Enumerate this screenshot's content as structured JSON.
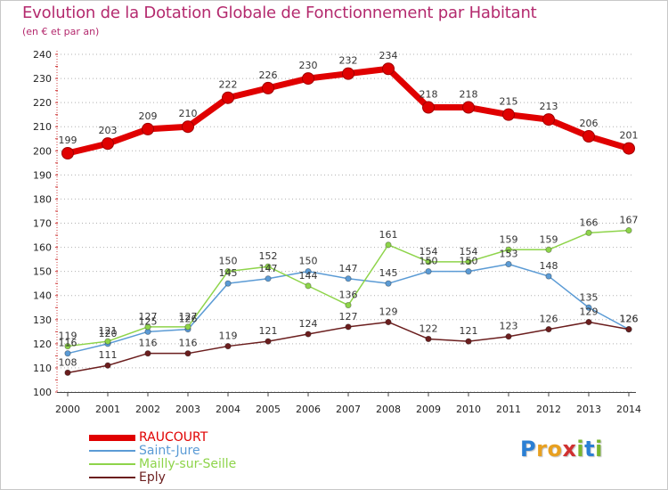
{
  "header": {
    "title": "Evolution de la Dotation Globale de Fonctionnement par Habitant",
    "subtitle": "(en € et par an)"
  },
  "logo": {
    "text": "Proxiti",
    "letters": [
      {
        "ch": "P",
        "color": "#2a7fd4"
      },
      {
        "ch": "r",
        "color": "#e8a020"
      },
      {
        "ch": "o",
        "color": "#e8a020"
      },
      {
        "ch": "x",
        "color": "#d03030"
      },
      {
        "ch": "i",
        "color": "#7ab630"
      },
      {
        "ch": "t",
        "color": "#2a7fd4"
      },
      {
        "ch": "i",
        "color": "#7ab630"
      }
    ]
  },
  "chart_data": {
    "type": "line",
    "title": "Evolution de la Dotation Globale de Fonctionnement par Habitant",
    "subtitle": "(en € et par an)",
    "xlabel": "",
    "ylabel": "",
    "ylim": [
      100,
      240
    ],
    "yticks": [
      100,
      110,
      120,
      130,
      140,
      150,
      160,
      170,
      180,
      190,
      200,
      210,
      220,
      230,
      240
    ],
    "grid": "horizontal-dotted",
    "legend_position": "bottom-left",
    "categories": [
      "2000",
      "2001",
      "2002",
      "2003",
      "2004",
      "2005",
      "2006",
      "2007",
      "2008",
      "2009",
      "2010",
      "2011",
      "2012",
      "2013",
      "2014"
    ],
    "series": [
      {
        "name": "RAUCOURT",
        "color": "#e00000",
        "highlight": true,
        "values": [
          199,
          203,
          209,
          210,
          222,
          226,
          230,
          232,
          234,
          218,
          218,
          215,
          213,
          206,
          201
        ],
        "labels": [
          "199",
          "203",
          "209",
          "210",
          "222",
          "226",
          "230",
          "232",
          "234",
          "218",
          "218",
          "215",
          "213",
          "206",
          "201"
        ]
      },
      {
        "name": "Saint-Jure",
        "color": "#5b9bd5",
        "values": [
          116,
          120,
          125,
          126,
          145,
          147,
          150,
          147,
          145,
          150,
          150,
          153,
          148,
          135,
          126
        ],
        "labels": [
          "116",
          "120",
          "125",
          "126",
          "145",
          "147",
          "150",
          "147",
          "145",
          "150",
          "150",
          "153",
          "148",
          "135",
          "126"
        ]
      },
      {
        "name": "Mailly-sur-Seille",
        "color": "#8ed44a",
        "values": [
          119,
          121,
          127,
          127,
          150,
          152,
          144,
          136,
          161,
          154,
          154,
          159,
          159,
          166,
          167
        ],
        "labels": [
          "119",
          "121",
          "127",
          "127",
          "150",
          "152",
          "144",
          "136",
          "161",
          "154",
          "154",
          "159",
          "159",
          "166",
          "167"
        ]
      },
      {
        "name": "Eply",
        "color": "#6b1e1e",
        "values": [
          108,
          111,
          116,
          116,
          119,
          121,
          124,
          127,
          129,
          122,
          121,
          123,
          126,
          129,
          126
        ],
        "labels": [
          "108",
          "111",
          "116",
          "116",
          "119",
          "121",
          "124",
          "127",
          "129",
          "122",
          "121",
          "123",
          "126",
          "129",
          "126"
        ]
      }
    ]
  }
}
